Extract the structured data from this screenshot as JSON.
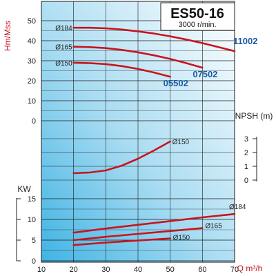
{
  "chart_data": {
    "type": "line",
    "title": "ES50-16",
    "subtitle": "3000 r/min.",
    "xlabel": "Q m³/h",
    "xlim": [
      10,
      70
    ],
    "x_ticks": [
      "10",
      "20",
      "30",
      "40",
      "50",
      "60",
      "70"
    ],
    "head": {
      "ylabel": "Hm/Mss",
      "ylim": [
        0,
        50
      ],
      "y_ticks": [
        "50",
        "40",
        "30",
        "20",
        "10",
        "0"
      ],
      "series": [
        {
          "name": "Ø184",
          "x": [
            20,
            25,
            30,
            35,
            40,
            45,
            50,
            55,
            60,
            65,
            70
          ],
          "y": [
            46.5,
            46.5,
            46.2,
            45.6,
            44.7,
            43.6,
            42.2,
            40.6,
            38.8,
            36.8,
            34.8
          ]
        },
        {
          "name": "Ø165",
          "x": [
            20,
            25,
            30,
            35,
            40,
            45,
            50,
            55,
            60
          ],
          "y": [
            37,
            36.8,
            36.3,
            35.4,
            34.2,
            32.7,
            30.9,
            28.8,
            26.5
          ]
        },
        {
          "name": "Ø150",
          "x": [
            20,
            25,
            30,
            35,
            40,
            45,
            50
          ],
          "y": [
            29,
            28.8,
            28.3,
            27.3,
            25.9,
            24.1,
            22
          ]
        }
      ],
      "model_labels": [
        "11002",
        "07502",
        "05502"
      ]
    },
    "npsh": {
      "ylabel": "NPSH (m)",
      "ylim": [
        0,
        3
      ],
      "y_ticks": [
        "3",
        "2",
        "1",
        "0"
      ],
      "series": [
        {
          "name": "Ø150",
          "x": [
            20,
            25,
            30,
            35,
            40,
            45,
            50
          ],
          "y": [
            0.5,
            0.55,
            0.7,
            1.05,
            1.55,
            2.15,
            2.8
          ]
        }
      ]
    },
    "power": {
      "ylabel": "KW",
      "ylim": [
        0,
        15
      ],
      "y_ticks": [
        "15",
        "10",
        "5",
        "0"
      ],
      "series": [
        {
          "name": "Ø184",
          "x": [
            20,
            30,
            40,
            50,
            60,
            70
          ],
          "y": [
            6.8,
            7.8,
            8.7,
            9.6,
            10.5,
            11.3
          ]
        },
        {
          "name": "Ø165",
          "x": [
            20,
            30,
            40,
            50,
            60
          ],
          "y": [
            5,
            5.8,
            6.5,
            7.2,
            7.9
          ]
        },
        {
          "name": "Ø150",
          "x": [
            20,
            30,
            40,
            50
          ],
          "y": [
            3.8,
            4.4,
            4.9,
            5.4
          ]
        }
      ]
    }
  }
}
